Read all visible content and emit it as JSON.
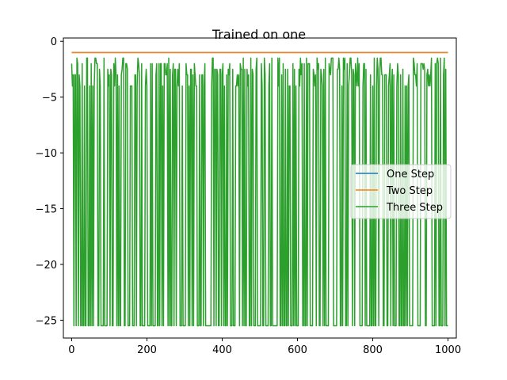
{
  "chart_data": {
    "type": "line",
    "title": "Trained on one",
    "xlabel": "",
    "ylabel": "",
    "xlim": [
      -22,
      1022
    ],
    "ylim": [
      -26.6,
      0.3
    ],
    "xticks": [
      0,
      200,
      400,
      600,
      800,
      1000
    ],
    "xtick_labels": [
      "0",
      "200",
      "400",
      "600",
      "800",
      "1000"
    ],
    "yticks": [
      0,
      -5,
      -10,
      -15,
      -20,
      -25
    ],
    "ytick_labels": [
      "0",
      "−5",
      "−10",
      "−15",
      "−20",
      "−25"
    ],
    "grid": false,
    "legend_position": "center-right",
    "series": [
      {
        "name": "One Step",
        "color": "#1f77b4",
        "style": "constant",
        "x": [
          0,
          1000
        ],
        "values": [
          -1.0,
          -1.0
        ]
      },
      {
        "name": "Two Step",
        "color": "#ff7f0e",
        "style": "constant",
        "x": [
          0,
          1000
        ],
        "values": [
          -1.0,
          -1.0
        ]
      },
      {
        "name": "Three Step",
        "color": "#2ca02c",
        "style": "oscillating",
        "x_range": [
          0,
          1000
        ],
        "low_value": -25.5,
        "high_values": [
          -1.5,
          -2.0,
          -2.5,
          -3.0,
          -4.0
        ],
        "gaps_at_x": [
          20,
          42,
          75,
          180,
          262,
          275,
          285,
          330,
          375,
          505,
          612,
          648,
          655,
          665,
          685,
          758,
          775,
          835,
          845
        ]
      }
    ]
  }
}
